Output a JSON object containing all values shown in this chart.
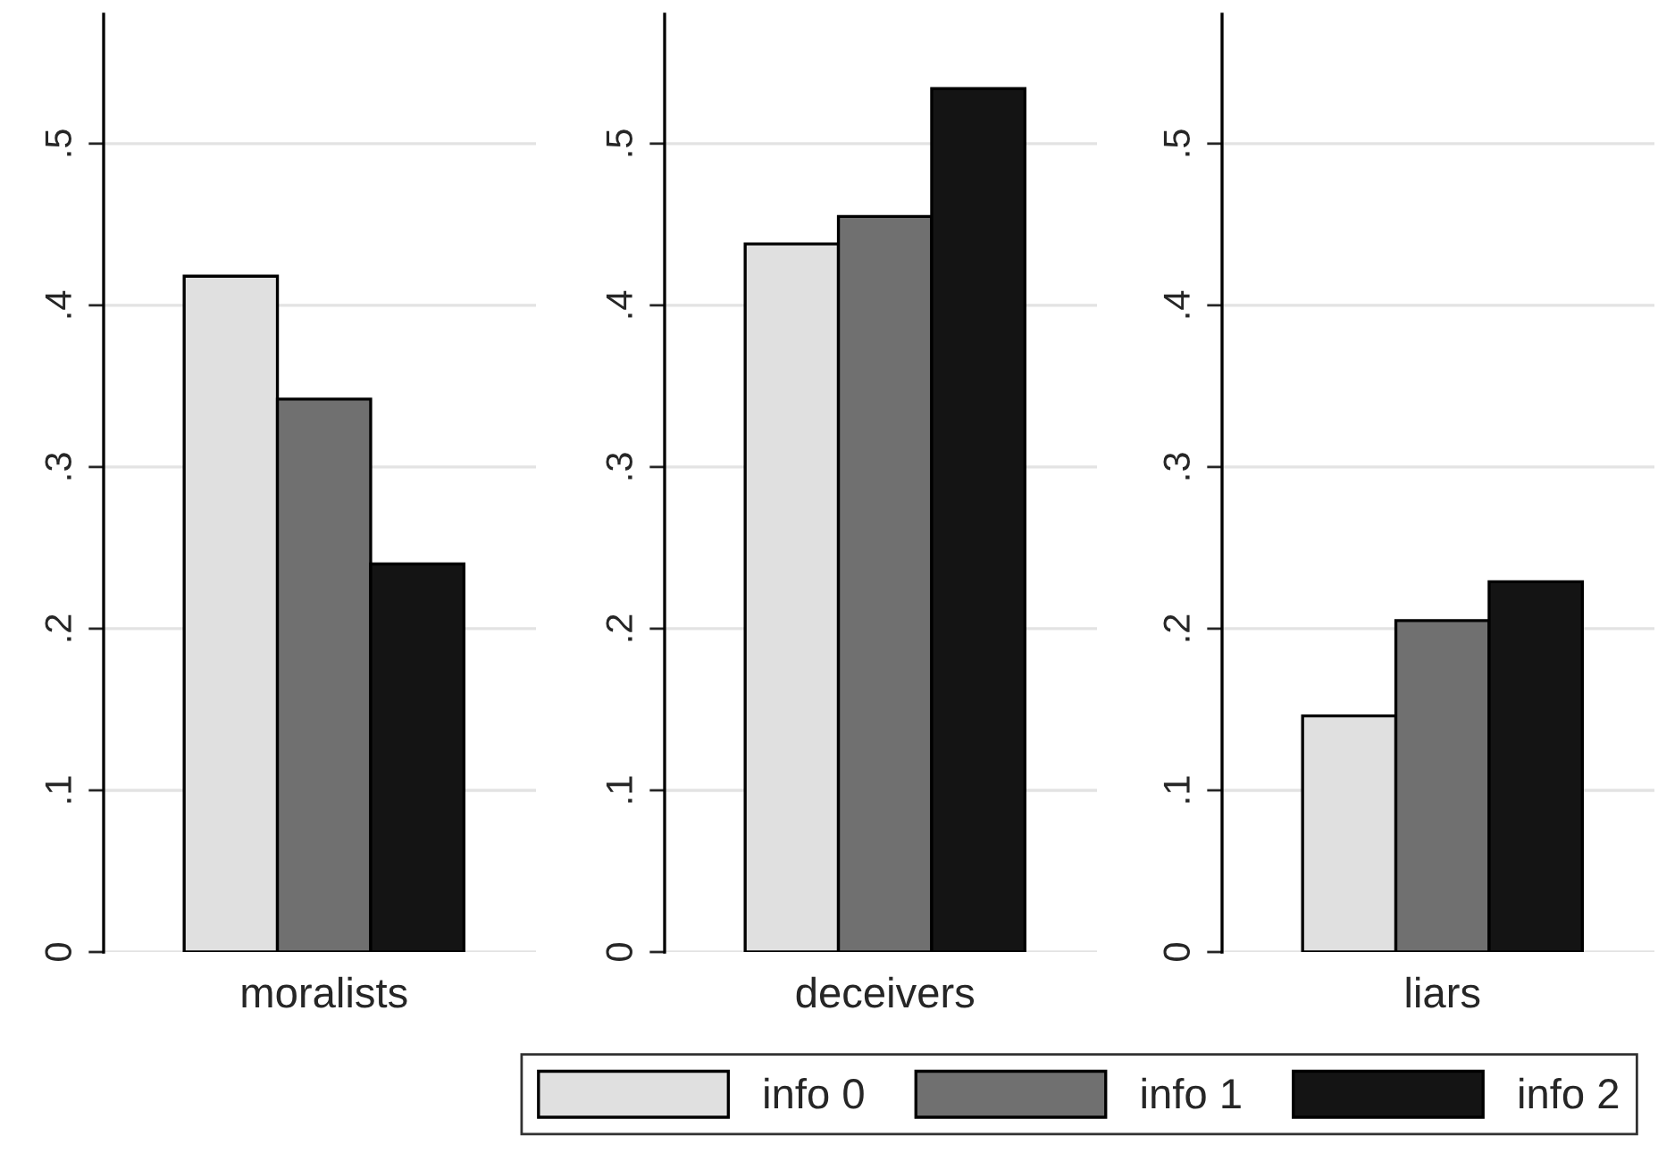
{
  "chart_data": [
    {
      "type": "bar",
      "categories": [
        "moralists"
      ],
      "ylim": [
        0,
        0.58
      ],
      "yticks": [
        {
          "value": 0,
          "label": "0"
        },
        {
          "value": 0.1,
          "label": ".1"
        },
        {
          "value": 0.2,
          "label": ".2"
        },
        {
          "value": 0.3,
          "label": ".3"
        },
        {
          "value": 0.4,
          "label": ".4"
        },
        {
          "value": 0.5,
          "label": ".5"
        }
      ],
      "grid": "y",
      "series": [
        {
          "color": "#e0e0e0",
          "values": [
            0.418
          ]
        },
        {
          "color": "#707070",
          "values": [
            0.342
          ]
        },
        {
          "color": "#141414",
          "values": [
            0.24
          ]
        }
      ]
    },
    {
      "type": "bar",
      "categories": [
        "deceivers"
      ],
      "ylim": [
        0,
        0.58
      ],
      "yticks": [
        {
          "value": 0,
          "label": "0"
        },
        {
          "value": 0.1,
          "label": ".1"
        },
        {
          "value": 0.2,
          "label": ".2"
        },
        {
          "value": 0.3,
          "label": ".3"
        },
        {
          "value": 0.4,
          "label": ".4"
        },
        {
          "value": 0.5,
          "label": ".5"
        }
      ],
      "grid": "y",
      "series": [
        {
          "color": "#e0e0e0",
          "values": [
            0.438
          ]
        },
        {
          "color": "#707070",
          "values": [
            0.455
          ]
        },
        {
          "color": "#141414",
          "values": [
            0.534
          ]
        }
      ]
    },
    {
      "type": "bar",
      "categories": [
        "liars"
      ],
      "ylim": [
        0,
        0.58
      ],
      "yticks": [
        {
          "value": 0,
          "label": "0"
        },
        {
          "value": 0.1,
          "label": ".1"
        },
        {
          "value": 0.2,
          "label": ".2"
        },
        {
          "value": 0.3,
          "label": ".3"
        },
        {
          "value": 0.4,
          "label": ".4"
        },
        {
          "value": 0.5,
          "label": ".5"
        }
      ],
      "grid": "y",
      "legend": "bottom",
      "series": [
        {
          "name": "info 0",
          "color": "#e0e0e0",
          "values": [
            0.146
          ]
        },
        {
          "name": "info 1",
          "color": "#707070",
          "values": [
            0.205
          ]
        },
        {
          "name": "info 2",
          "color": "#141414",
          "values": [
            0.229
          ]
        }
      ]
    }
  ]
}
